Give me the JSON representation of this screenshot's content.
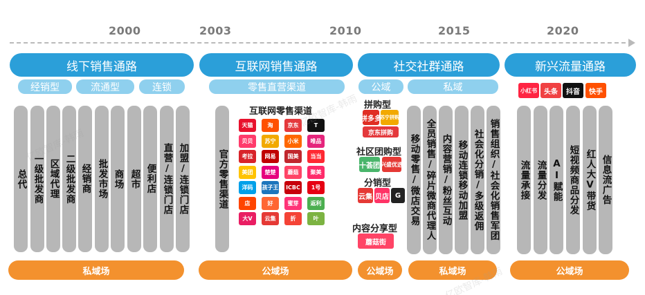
{
  "timeline": {
    "years": [
      "2000",
      "2003",
      "2010",
      "2015",
      "2020"
    ]
  },
  "stages": [
    {
      "title": "线下销售通路",
      "subs": [
        "经销型",
        "流通型",
        "连锁"
      ],
      "columns": [
        "总代",
        "一级批发商",
        "区域代理",
        "二级批发商",
        "经销商",
        "批发市场",
        "商场",
        "超市",
        "便利店",
        "直营/连锁门店",
        "加盟/连锁门店"
      ],
      "footer": "私域场"
    },
    {
      "title": "互联网销售通路",
      "subs": [
        "零售直营渠道"
      ],
      "columns": [
        "官方零售渠道"
      ],
      "logos_title": "互联网零售渠道",
      "logos": [
        {
          "text": "天猫",
          "color": "#e8112d"
        },
        {
          "text": "淘",
          "color": "#ff5000"
        },
        {
          "text": "京东",
          "color": "#e4393c"
        },
        {
          "text": "T",
          "color": "#111111"
        },
        {
          "text": "贝贝",
          "color": "#ff3b6b"
        },
        {
          "text": "苏宁",
          "color": "#f2a900"
        },
        {
          "text": "小米",
          "color": "#ff6700"
        },
        {
          "text": "唯品",
          "color": "#e5257c"
        },
        {
          "text": "考拉",
          "color": "#d8232a"
        },
        {
          "text": "网易",
          "color": "#c00000"
        },
        {
          "text": "国美",
          "color": "#c1272d"
        },
        {
          "text": "当当",
          "color": "#ff2832"
        },
        {
          "text": "美团",
          "color": "#ffc300"
        },
        {
          "text": "楚楚",
          "color": "#e6007e"
        },
        {
          "text": "蘑菇",
          "color": "#ff4466"
        },
        {
          "text": "聚美",
          "color": "#ff2b6a"
        },
        {
          "text": "洋码",
          "color": "#00a0e9"
        },
        {
          "text": "孩子王",
          "color": "#1c75bc"
        },
        {
          "text": "ICBC",
          "color": "#c7000b"
        },
        {
          "text": "1号",
          "color": "#e60012"
        },
        {
          "text": "店",
          "color": "#ff4400"
        },
        {
          "text": "好",
          "color": "#ff6633"
        },
        {
          "text": "蜜芽",
          "color": "#ff3377"
        },
        {
          "text": "返利",
          "color": "#4caf50"
        },
        {
          "text": "大V",
          "color": "#e91e63"
        },
        {
          "text": "云集",
          "color": "#e53935"
        },
        {
          "text": "折",
          "color": "#f44336"
        },
        {
          "text": "叶",
          "color": "#7cb342"
        }
      ],
      "footer": "公域场"
    },
    {
      "title": "社交社群通路",
      "subs": [
        "公域",
        "私域"
      ],
      "groups": [
        {
          "title": "拼购型",
          "logos": [
            {
              "text": "拼多多",
              "color": "#e02e24"
            },
            {
              "text": "苏宁拼购",
              "color": "#f2a900"
            },
            {
              "text": "京东拼购",
              "color": "#e4393c"
            }
          ]
        },
        {
          "title": "社区团购型",
          "logos": [
            {
              "text": "十荟团",
              "color": "#49b56b"
            },
            {
              "text": "兴盛优选",
              "color": "#e53935"
            }
          ]
        },
        {
          "title": "分销型",
          "logos": [
            {
              "text": "云集",
              "color": "#e53935"
            },
            {
              "text": "贝店",
              "color": "#ff3366"
            },
            {
              "text": "G",
              "color": "#222222"
            }
          ]
        },
        {
          "title": "内容分享型",
          "logos": [
            {
              "text": "蘑菇街",
              "color": "#ff4466"
            }
          ]
        }
      ],
      "columns": [
        "移动零售/微店交易",
        "全员销售/碎片微商代理人",
        "内容营销/粉丝互动",
        "移动连锁移动加盟",
        "社会化分销/多级返佣",
        "销售组织/社会化销售军团"
      ],
      "footers": [
        "公域场",
        "私域场"
      ]
    },
    {
      "title": "新兴流量通路",
      "subs": [],
      "logos": [
        {
          "text": "小红书",
          "color": "#ff2442"
        },
        {
          "text": "头条",
          "color": "#f04142"
        },
        {
          "text": "抖音",
          "color": "#111111"
        },
        {
          "text": "快手",
          "color": "#ff5000"
        }
      ],
      "columns": [
        "流量承接",
        "流量分发",
        "AI赋能",
        "短视频商品分发",
        "红人大V带货",
        "信息流广告"
      ],
      "footer": "公域场"
    }
  ],
  "colors": {
    "stage": "#2b9fd9",
    "sub": "#8fd0ee",
    "column": "#b7b7b7",
    "footer": "#f3912e"
  }
}
